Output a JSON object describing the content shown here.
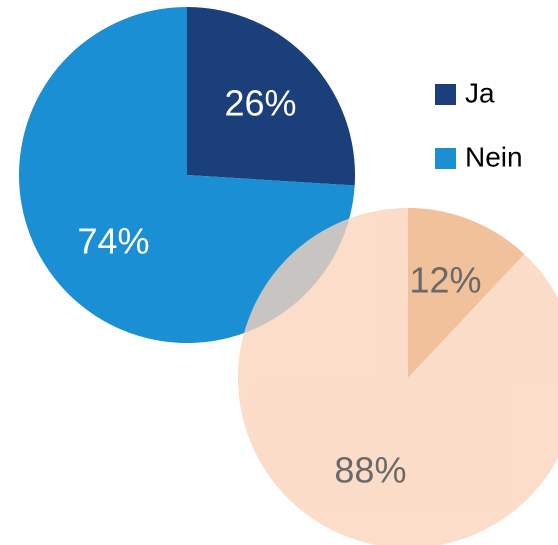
{
  "chart_data": [
    {
      "type": "pie",
      "categories": [
        "Ja",
        "Nein"
      ],
      "values": [
        26,
        74
      ],
      "value_labels": [
        "26%",
        "74%"
      ],
      "colors": [
        "#1b3f7a",
        "#1a8fd4"
      ],
      "label_color": "#ffffff",
      "legend": "right"
    },
    {
      "type": "pie",
      "values": [
        12,
        88
      ],
      "value_labels": [
        "12%",
        "88%"
      ],
      "colors": [
        "#ecb07e",
        "#fad3bb"
      ],
      "label_color": "#404040"
    }
  ]
}
